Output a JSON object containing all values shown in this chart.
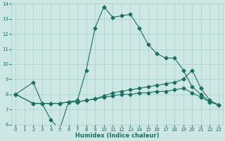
{
  "xlabel": "Humidex (Indice chaleur)",
  "xlim": [
    -0.5,
    23.5
  ],
  "ylim": [
    6,
    14
  ],
  "xticks": [
    0,
    1,
    2,
    3,
    4,
    5,
    6,
    7,
    8,
    9,
    10,
    11,
    12,
    13,
    14,
    15,
    16,
    17,
    18,
    19,
    20,
    21,
    22,
    23
  ],
  "yticks": [
    6,
    7,
    8,
    9,
    10,
    11,
    12,
    13,
    14
  ],
  "bg_color": "#cde8e4",
  "grid_color": "#aacfca",
  "line_color": "#1e6e64",
  "line1_x": [
    0,
    2,
    3,
    4,
    5,
    6,
    7,
    8,
    9,
    10,
    11,
    12,
    13,
    14,
    15,
    16,
    17,
    18,
    19,
    20,
    21,
    22,
    23
  ],
  "line1_y": [
    8.0,
    8.8,
    7.4,
    6.3,
    5.7,
    7.5,
    7.6,
    9.6,
    12.4,
    13.8,
    13.1,
    13.2,
    13.3,
    12.4,
    11.3,
    10.7,
    10.4,
    10.4,
    9.6,
    8.5,
    8.0,
    7.5,
    7.3
  ],
  "line2_x": [
    0,
    2,
    3,
    4,
    5,
    6,
    7,
    8,
    9,
    10,
    11,
    12,
    13,
    14,
    15,
    16,
    17,
    18,
    19,
    20,
    21,
    22,
    23
  ],
  "line2_y": [
    8.0,
    7.4,
    7.4,
    7.4,
    7.4,
    7.5,
    7.5,
    7.6,
    7.7,
    7.9,
    8.1,
    8.2,
    8.3,
    8.4,
    8.5,
    8.6,
    8.7,
    8.8,
    9.0,
    9.6,
    8.4,
    7.6,
    7.3
  ],
  "line3_x": [
    0,
    2,
    3,
    4,
    5,
    6,
    7,
    8,
    9,
    10,
    11,
    12,
    13,
    14,
    15,
    16,
    17,
    18,
    19,
    20,
    21,
    22,
    23
  ],
  "line3_y": [
    8.0,
    7.4,
    7.4,
    7.4,
    7.4,
    7.5,
    7.5,
    7.6,
    7.7,
    7.8,
    7.9,
    8.0,
    8.0,
    8.1,
    8.1,
    8.2,
    8.2,
    8.3,
    8.4,
    8.1,
    7.8,
    7.5,
    7.3
  ]
}
